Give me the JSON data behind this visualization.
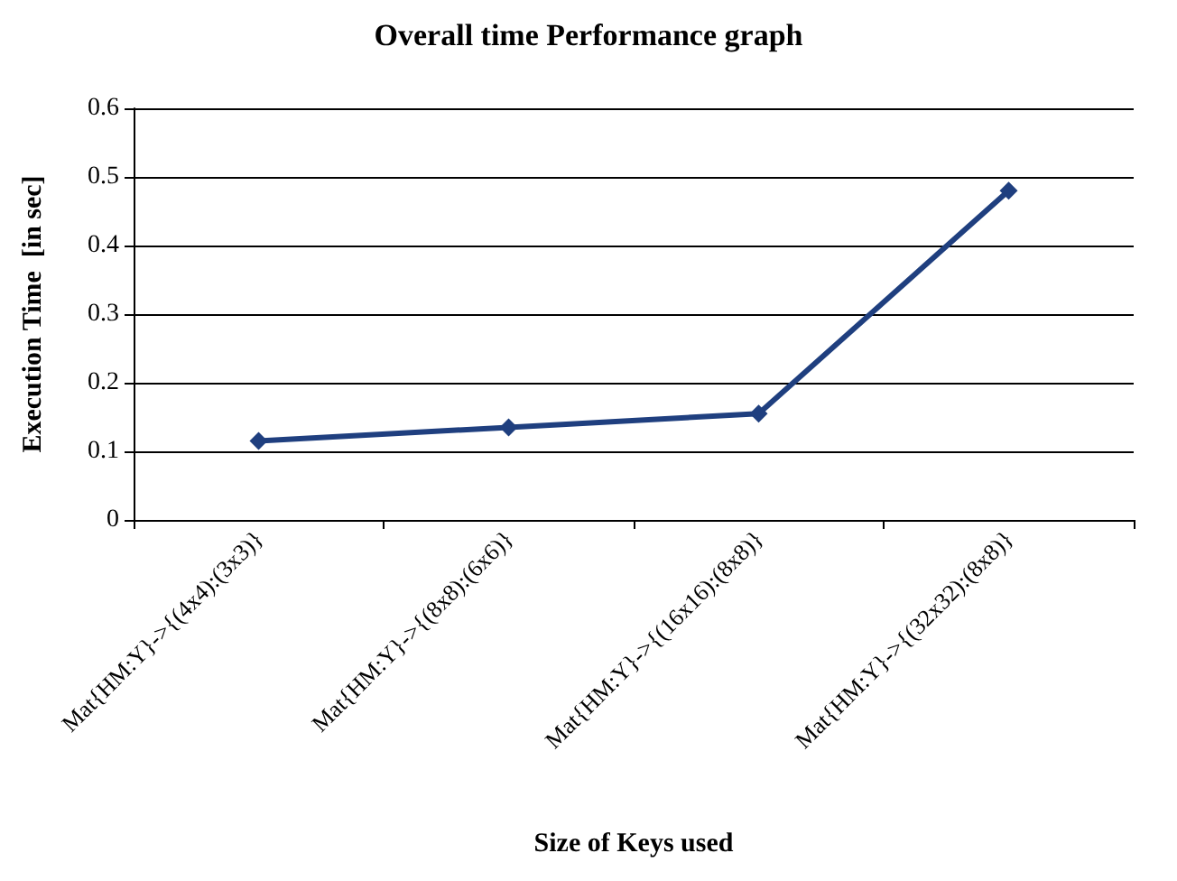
{
  "chart_data": {
    "type": "line",
    "title": "Overall time Performance graph",
    "xlabel": "Size of Keys used",
    "ylabel": "Execution Time  [in sec]",
    "categories": [
      "Mat{HM:Y}->{(4x4):(3x3)}",
      "Mat{HM:Y}->{(8x8):(6x6)}",
      "Mat{HM:Y}->{(16x16):(8x8)}",
      "Mat{HM:Y}->{(32x32):(8x8)}"
    ],
    "series": [
      {
        "color": "#1f3f7f",
        "values": [
          0.115,
          0.135,
          0.155,
          0.48
        ]
      }
    ],
    "ylim": [
      0,
      0.6
    ],
    "yticks": [
      0,
      0.1,
      0.2,
      0.3,
      0.4,
      0.5,
      0.6
    ],
    "grid": "y",
    "marker": "diamond",
    "line_style": "solid"
  }
}
